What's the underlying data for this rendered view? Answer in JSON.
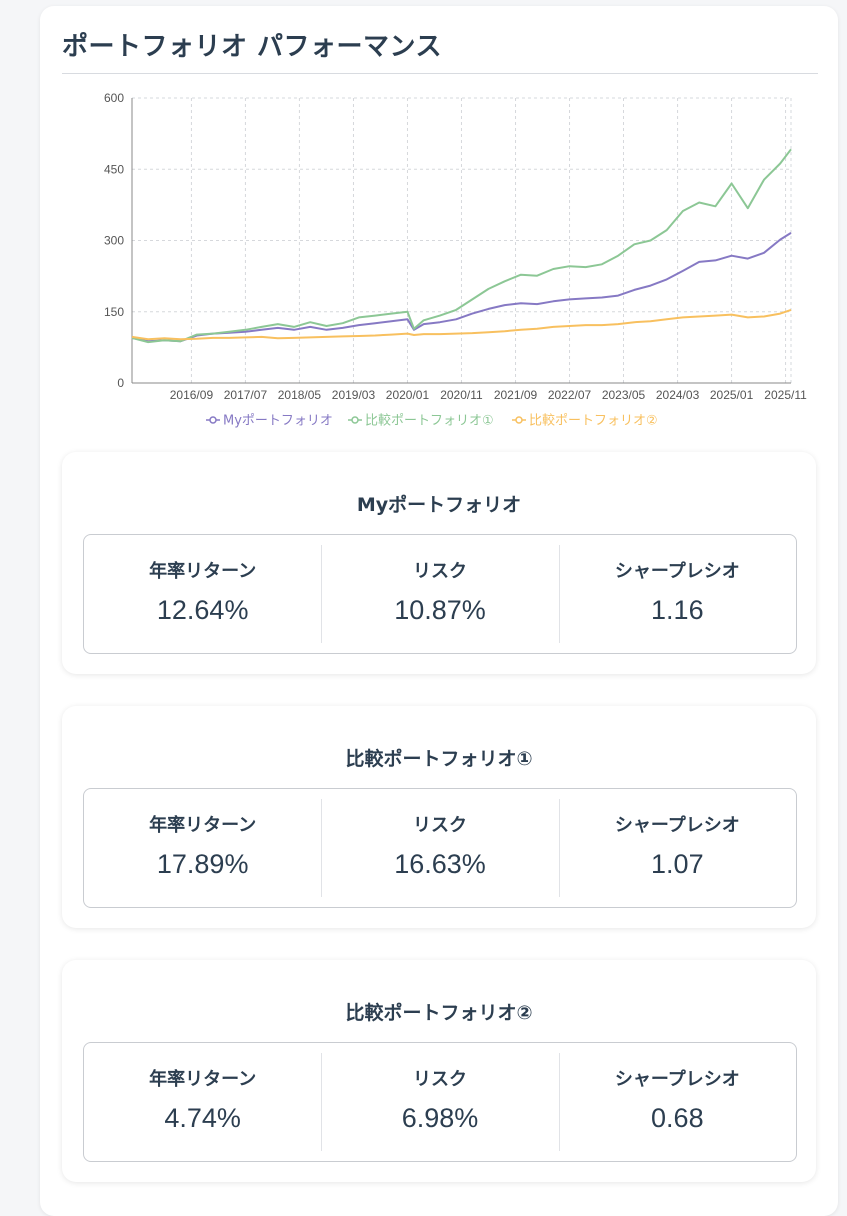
{
  "page": {
    "title": "ポートフォリオ パフォーマンス"
  },
  "chart_data": {
    "type": "line",
    "title": "",
    "xlabel": "",
    "ylabel": "",
    "ylim": [
      0,
      600
    ],
    "yticks": [
      0,
      150,
      300,
      450,
      600
    ],
    "xlim": [
      2015.75,
      2025.917
    ],
    "xtick_labels": [
      "2016/09",
      "2017/07",
      "2018/05",
      "2019/03",
      "2020/01",
      "2020/11",
      "2021/09",
      "2022/07",
      "2023/05",
      "2024/03",
      "2025/01",
      "2025/11"
    ],
    "xtick_values": [
      2016.667,
      2017.5,
      2018.333,
      2019.167,
      2020.0,
      2020.833,
      2021.667,
      2022.5,
      2023.333,
      2024.167,
      2025.0,
      2025.833
    ],
    "grid": true,
    "legend_position": "bottom",
    "series": [
      {
        "name": "Myポートフォリオ",
        "color": "#8679c4",
        "x": [
          2015.75,
          2016.0,
          2016.25,
          2016.5,
          2016.75,
          2017.0,
          2017.25,
          2017.5,
          2017.75,
          2018.0,
          2018.25,
          2018.5,
          2018.75,
          2019.0,
          2019.25,
          2019.5,
          2019.75,
          2020.0,
          2020.1,
          2020.25,
          2020.5,
          2020.75,
          2021.0,
          2021.25,
          2021.5,
          2021.75,
          2022.0,
          2022.25,
          2022.5,
          2022.75,
          2023.0,
          2023.25,
          2023.5,
          2023.75,
          2024.0,
          2024.25,
          2024.5,
          2024.75,
          2025.0,
          2025.25,
          2025.5,
          2025.75,
          2025.917
        ],
        "y": [
          95,
          88,
          90,
          88,
          100,
          104,
          106,
          108,
          112,
          116,
          112,
          118,
          112,
          116,
          122,
          126,
          130,
          134,
          112,
          124,
          128,
          134,
          146,
          156,
          164,
          168,
          166,
          172,
          176,
          178,
          180,
          184,
          196,
          205,
          218,
          236,
          255,
          258,
          268,
          262,
          274,
          302,
          316
        ]
      },
      {
        "name": "比較ポートフォリオ①",
        "color": "#8cc795",
        "x": [
          2015.75,
          2016.0,
          2016.25,
          2016.5,
          2016.75,
          2017.0,
          2017.25,
          2017.5,
          2017.75,
          2018.0,
          2018.25,
          2018.5,
          2018.75,
          2019.0,
          2019.25,
          2019.5,
          2019.75,
          2020.0,
          2020.1,
          2020.25,
          2020.5,
          2020.75,
          2021.0,
          2021.25,
          2021.5,
          2021.75,
          2022.0,
          2022.25,
          2022.5,
          2022.75,
          2023.0,
          2023.25,
          2023.5,
          2023.75,
          2024.0,
          2024.25,
          2024.5,
          2024.75,
          2025.0,
          2025.25,
          2025.5,
          2025.75,
          2025.917
        ],
        "y": [
          95,
          86,
          90,
          88,
          102,
          104,
          108,
          112,
          118,
          124,
          118,
          128,
          120,
          126,
          138,
          142,
          146,
          150,
          114,
          132,
          142,
          154,
          176,
          198,
          214,
          228,
          226,
          240,
          246,
          244,
          250,
          268,
          292,
          300,
          322,
          362,
          380,
          372,
          420,
          368,
          428,
          462,
          492
        ]
      },
      {
        "name": "比較ポートフォリオ②",
        "color": "#f8c05f",
        "x": [
          2015.75,
          2016.0,
          2016.25,
          2016.5,
          2016.75,
          2017.0,
          2017.25,
          2017.5,
          2017.75,
          2018.0,
          2018.25,
          2018.5,
          2018.75,
          2019.0,
          2019.25,
          2019.5,
          2019.75,
          2020.0,
          2020.1,
          2020.25,
          2020.5,
          2020.75,
          2021.0,
          2021.25,
          2021.5,
          2021.75,
          2022.0,
          2022.25,
          2022.5,
          2022.75,
          2023.0,
          2023.25,
          2023.5,
          2023.75,
          2024.0,
          2024.25,
          2024.5,
          2024.75,
          2025.0,
          2025.25,
          2025.5,
          2025.75,
          2025.917
        ],
        "y": [
          97,
          92,
          94,
          92,
          93,
          95,
          95,
          96,
          97,
          94,
          95,
          96,
          97,
          98,
          99,
          100,
          102,
          104,
          101,
          103,
          103,
          104,
          105,
          107,
          109,
          112,
          114,
          118,
          120,
          122,
          122,
          124,
          128,
          130,
          134,
          138,
          140,
          142,
          144,
          138,
          140,
          146,
          154
        ]
      }
    ]
  },
  "portfolios": [
    {
      "name": "Myポートフォリオ",
      "metrics": [
        {
          "label": "年率リターン",
          "value": "12.64%"
        },
        {
          "label": "リスク",
          "value": "10.87%"
        },
        {
          "label": "シャープレシオ",
          "value": "1.16"
        }
      ]
    },
    {
      "name": "比較ポートフォリオ①",
      "metrics": [
        {
          "label": "年率リターン",
          "value": "17.89%"
        },
        {
          "label": "リスク",
          "value": "16.63%"
        },
        {
          "label": "シャープレシオ",
          "value": "1.07"
        }
      ]
    },
    {
      "name": "比較ポートフォリオ②",
      "metrics": [
        {
          "label": "年率リターン",
          "value": "4.74%"
        },
        {
          "label": "リスク",
          "value": "6.98%"
        },
        {
          "label": "シャープレシオ",
          "value": "0.68"
        }
      ]
    }
  ]
}
